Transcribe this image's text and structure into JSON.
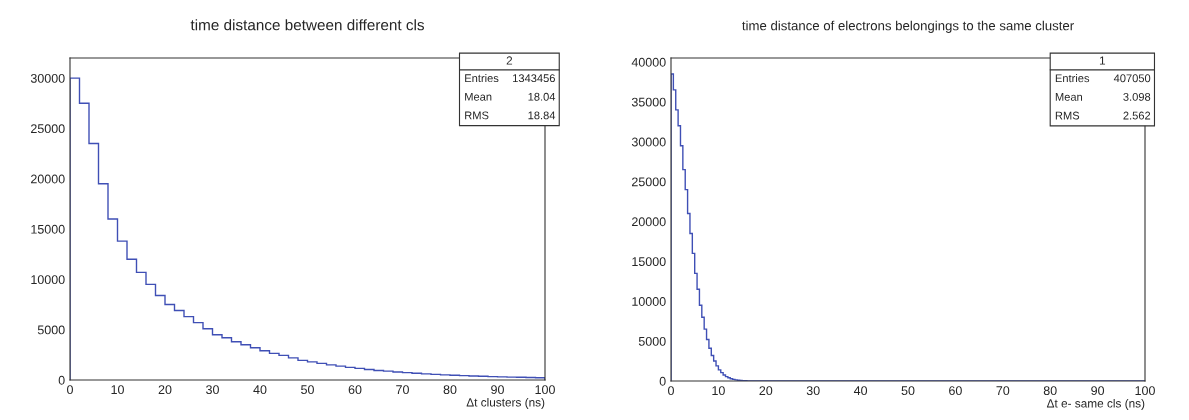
{
  "chart_data": [
    {
      "type": "histogram",
      "title": "time distance between different cls",
      "xlabel": "Δt clusters (ns)",
      "annotations": [
        "2",
        "Entries",
        "1343456",
        "Mean",
        "18.04",
        "RMS",
        "18.84"
      ],
      "bins": [
        0,
        2,
        4,
        6,
        8,
        10,
        12,
        14,
        16,
        18,
        20,
        22,
        24,
        26,
        28,
        30,
        32,
        34,
        36,
        38,
        40,
        42,
        44,
        46,
        48,
        50,
        52,
        54,
        56,
        58,
        60,
        62,
        64,
        66,
        68,
        70,
        72,
        74,
        76,
        78,
        80,
        82,
        84,
        86,
        88,
        90,
        92,
        94,
        96,
        98,
        100
      ],
      "values": [
        30000,
        27500,
        23500,
        19500,
        16000,
        13800,
        12000,
        10700,
        9500,
        8400,
        7500,
        6900,
        6300,
        5700,
        5100,
        4500,
        4200,
        3800,
        3500,
        3200,
        2900,
        2650,
        2450,
        2200,
        1950,
        1800,
        1650,
        1500,
        1380,
        1250,
        1150,
        1050,
        950,
        880,
        800,
        730,
        670,
        610,
        560,
        510,
        470,
        430,
        400,
        370,
        340,
        310,
        290,
        270,
        250,
        230
      ],
      "color": "#3f4fb5",
      "xlim": [
        0,
        100
      ],
      "xticks": [
        0,
        10,
        20,
        30,
        40,
        50,
        60,
        70,
        80,
        90,
        100
      ],
      "ylim": [
        0,
        32000
      ],
      "yticks": [
        0,
        5000,
        10000,
        15000,
        20000,
        25000,
        30000
      ],
      "grid": false,
      "legend": false
    },
    {
      "type": "histogram",
      "title": "time distance of electrons belongings to the same cluster",
      "xlabel": "Δt e- same cls (ns)",
      "annotations": [
        "1",
        "Entries",
        "407050",
        "Mean",
        "3.098",
        "RMS",
        "2.562"
      ],
      "bins": [
        0,
        0.5,
        1,
        1.5,
        2,
        2.5,
        3,
        3.5,
        4,
        4.5,
        5,
        5.5,
        6,
        6.5,
        7,
        7.5,
        8,
        8.5,
        9,
        9.5,
        10,
        10.5,
        11,
        11.5,
        12,
        12.5,
        13,
        13.5,
        14,
        14.5,
        15,
        15.5,
        16,
        100
      ],
      "values": [
        38500,
        36500,
        34000,
        32000,
        29500,
        26500,
        24000,
        21000,
        18500,
        16000,
        13500,
        11500,
        9500,
        8000,
        6500,
        5200,
        4100,
        3200,
        2500,
        1900,
        1400,
        1050,
        750,
        550,
        400,
        280,
        200,
        140,
        100,
        70,
        50,
        30,
        0
      ],
      "color": "#3f4fb5",
      "xlim": [
        0,
        100
      ],
      "xticks": [
        0,
        10,
        20,
        30,
        40,
        50,
        60,
        70,
        80,
        90,
        100
      ],
      "ylim": [
        0,
        40500
      ],
      "yticks": [
        0,
        5000,
        10000,
        15000,
        20000,
        25000,
        30000,
        35000,
        40000
      ],
      "grid": false,
      "legend": false
    }
  ]
}
